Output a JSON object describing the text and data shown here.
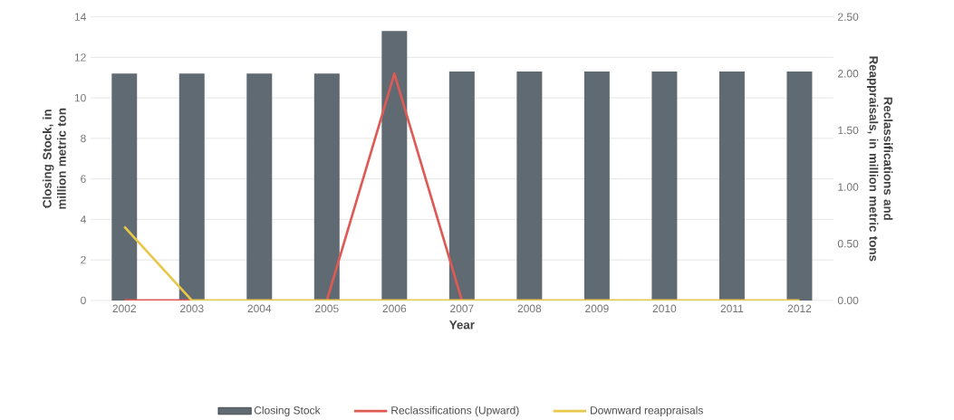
{
  "chart_data": {
    "type": "bar",
    "xlabel": "Year",
    "ylabel": "Closing Stock, in million metric ton",
    "y2label": "Reclassifications and Reappraisals, in million metric tons",
    "categories": [
      "2002",
      "2003",
      "2004",
      "2005",
      "2006",
      "2007",
      "2008",
      "2009",
      "2010",
      "2011",
      "2012"
    ],
    "series": [
      {
        "name": "Closing Stock",
        "color": "#5f6a72",
        "values": [
          11.2,
          11.2,
          11.2,
          11.2,
          13.3,
          11.3,
          11.3,
          11.3,
          11.3,
          11.3,
          11.3
        ]
      },
      {
        "name": "Reclassifications (Upward)",
        "type": "line",
        "axis": "y2",
        "color": "#e05a55",
        "values": [
          0,
          0,
          null,
          0,
          2.0,
          0,
          null,
          null,
          null,
          null,
          null
        ]
      },
      {
        "name": "Downward reappraisals",
        "type": "line",
        "axis": "y2",
        "color": "#e8c84a",
        "values": [
          0.65,
          0,
          0,
          0,
          0,
          0,
          0,
          0,
          0,
          0,
          0
        ]
      }
    ],
    "ylim": [
      0,
      14
    ],
    "yticks": [
      0,
      2,
      4,
      6,
      8,
      10,
      12,
      14
    ],
    "y2lim": [
      0,
      2.5
    ],
    "y2ticks": [
      {
        "value": 0,
        "label": "0.00"
      },
      {
        "value": 0.5,
        "label": "0.50"
      },
      {
        "value": 1,
        "label": "1.00"
      },
      {
        "value": 1.5,
        "label": "1.50"
      },
      {
        "value": 2,
        "label": "2.00"
      },
      {
        "value": 2.5,
        "label": "2.50"
      }
    ],
    "grid": "y",
    "legend": "bottom"
  }
}
